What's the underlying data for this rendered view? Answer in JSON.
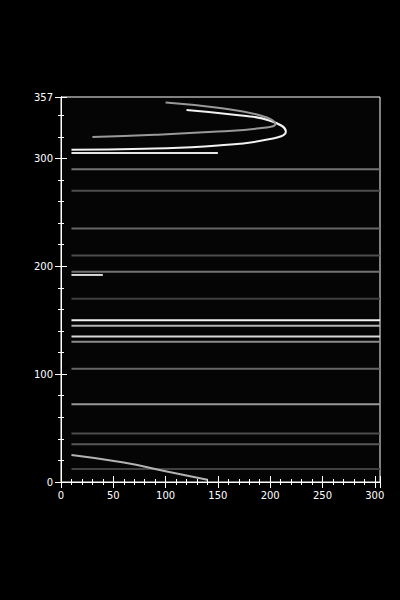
{
  "chart_data": {
    "type": "image",
    "xlim": [
      0,
      305
    ],
    "ylim": [
      0,
      357
    ],
    "xticks": [
      0,
      50,
      100,
      150,
      200,
      250,
      300
    ],
    "yticks": [
      0,
      100,
      200,
      300
    ],
    "streaks": [
      {
        "y": 305,
        "x": [
          10,
          150
        ],
        "intensity": 0.9
      },
      {
        "y": 290,
        "x": [
          10,
          305
        ],
        "intensity": 0.45
      },
      {
        "y": 270,
        "x": [
          10,
          305
        ],
        "intensity": 0.3
      },
      {
        "y": 235,
        "x": [
          10,
          305
        ],
        "intensity": 0.4
      },
      {
        "y": 210,
        "x": [
          10,
          305
        ],
        "intensity": 0.3
      },
      {
        "y": 195,
        "x": [
          10,
          305
        ],
        "intensity": 0.45
      },
      {
        "y": 192,
        "x": [
          10,
          40
        ],
        "intensity": 0.85
      },
      {
        "y": 170,
        "x": [
          10,
          305
        ],
        "intensity": 0.25
      },
      {
        "y": 150,
        "x": [
          10,
          305
        ],
        "intensity": 0.95
      },
      {
        "y": 145,
        "x": [
          10,
          305
        ],
        "intensity": 0.7
      },
      {
        "y": 135,
        "x": [
          10,
          305
        ],
        "intensity": 0.85
      },
      {
        "y": 130,
        "x": [
          10,
          305
        ],
        "intensity": 0.55
      },
      {
        "y": 105,
        "x": [
          10,
          305
        ],
        "intensity": 0.4
      },
      {
        "y": 72,
        "x": [
          10,
          305
        ],
        "intensity": 0.6
      },
      {
        "y": 45,
        "x": [
          10,
          305
        ],
        "intensity": 0.3
      },
      {
        "y": 35,
        "x": [
          10,
          305
        ],
        "intensity": 0.35
      },
      {
        "y": 12,
        "x": [
          10,
          305
        ],
        "intensity": 0.25
      }
    ],
    "curves": [
      {
        "x": [
          10,
          80,
          150,
          200,
          215,
          200,
          170,
          120
        ],
        "y": [
          308,
          309,
          312,
          318,
          325,
          335,
          340,
          345
        ],
        "intensity": 0.95
      },
      {
        "x": [
          30,
          90,
          150,
          190,
          205,
          190,
          150,
          100
        ],
        "y": [
          320,
          322,
          325,
          328,
          332,
          340,
          347,
          352
        ],
        "intensity": 0.6
      },
      {
        "x": [
          10,
          60,
          100,
          140
        ],
        "y": [
          25,
          18,
          10,
          2
        ],
        "intensity": 0.7
      }
    ]
  }
}
